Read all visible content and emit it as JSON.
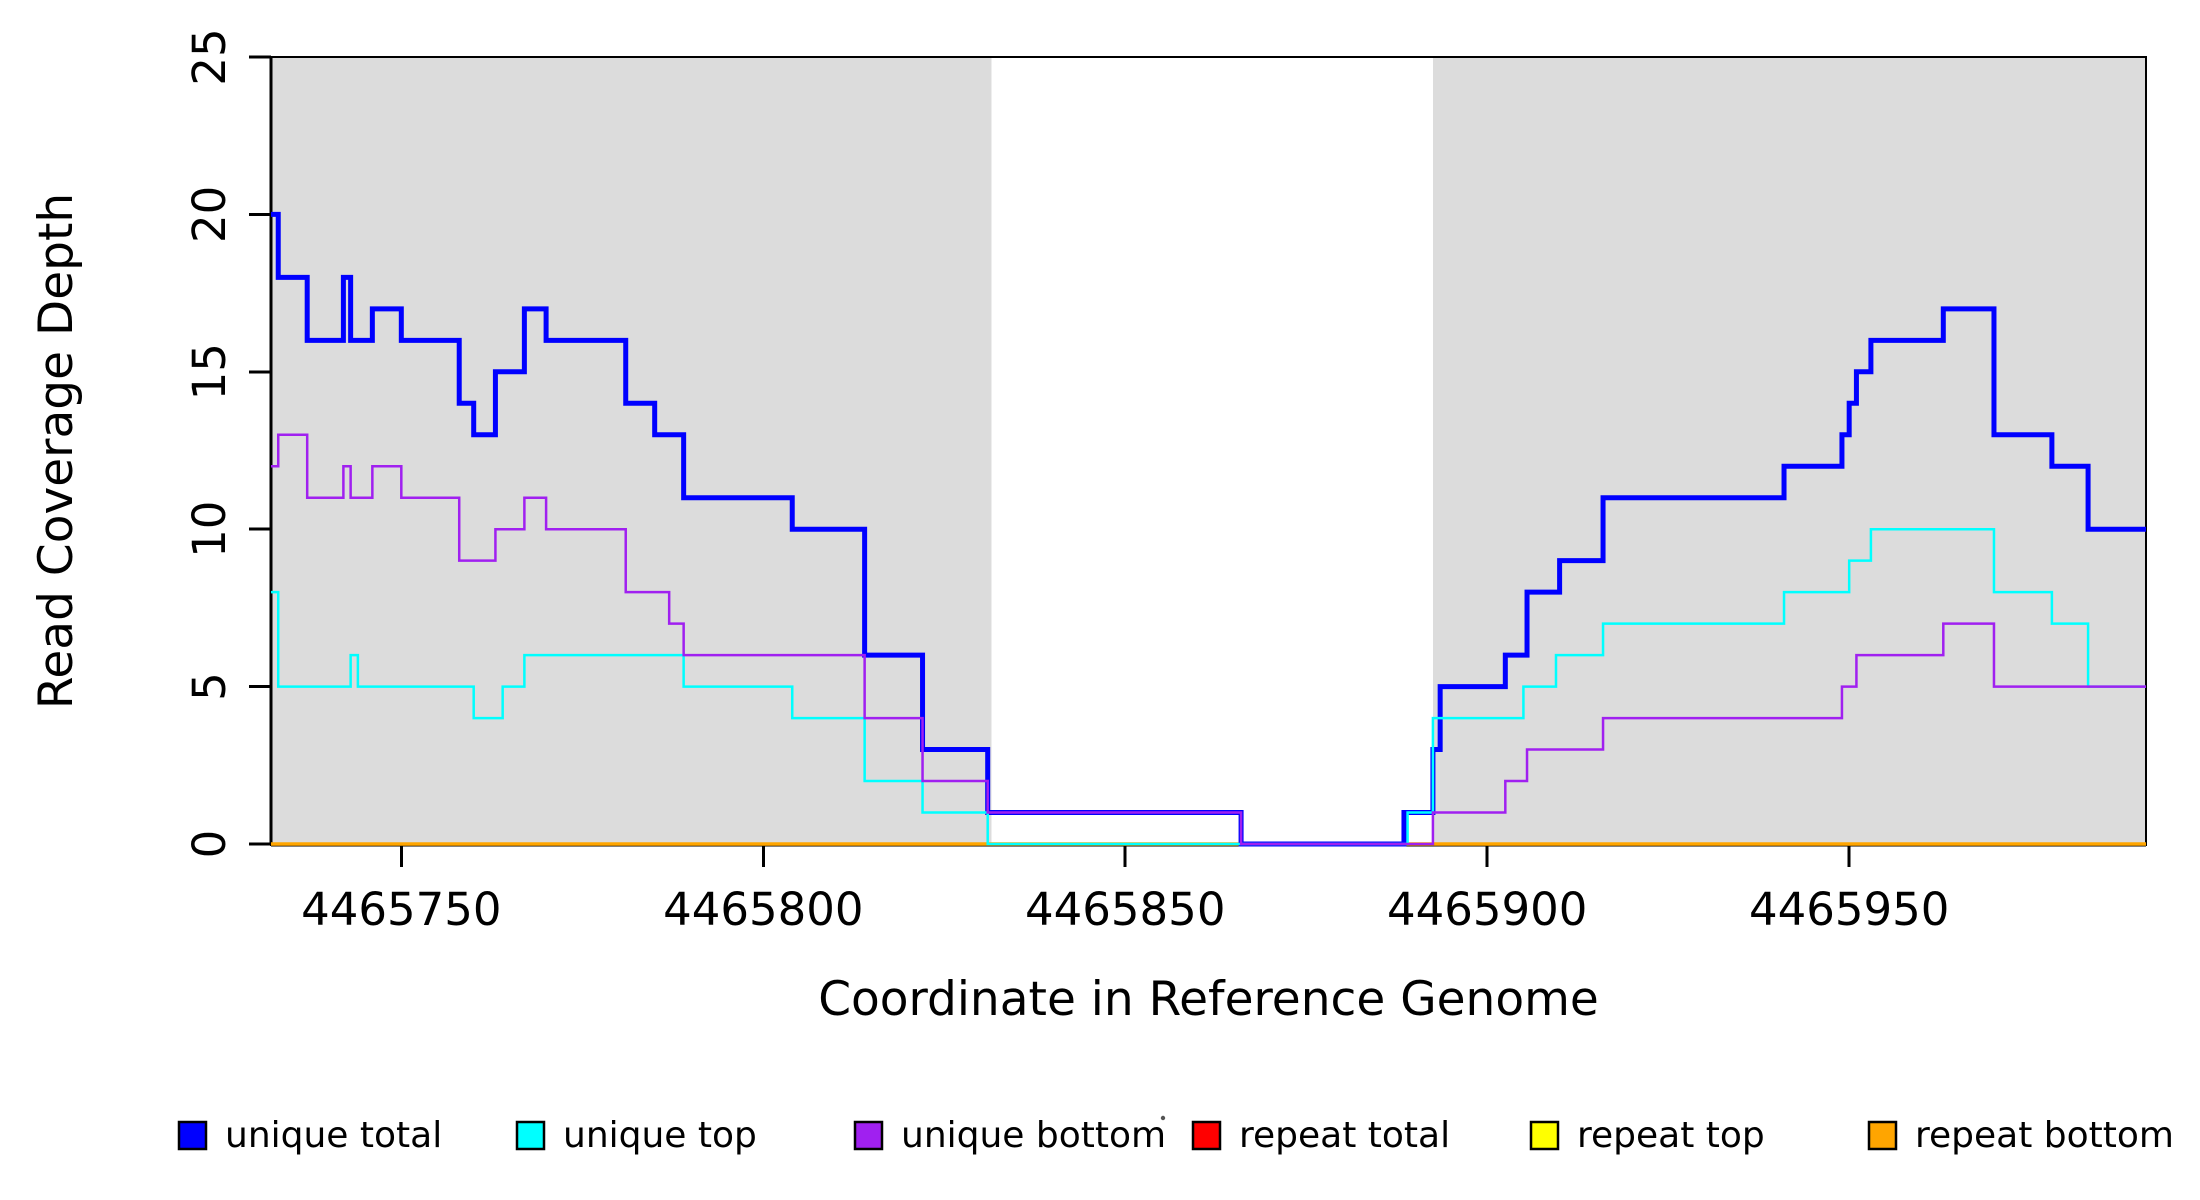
{
  "chart_data": {
    "type": "line",
    "subtype": "step-coverage-plot",
    "title": "",
    "xlabel": "Coordinate in Reference Genome",
    "ylabel": "Read Coverage Depth",
    "xlim": [
      4465732,
      4465991
    ],
    "ylim": [
      0,
      25
    ],
    "x_ticks": [
      4465750,
      4465800,
      4465850,
      4465900,
      4465950
    ],
    "y_ticks": [
      0,
      5,
      10,
      15,
      20,
      25
    ],
    "grid": false,
    "background_color": "#FFFFFF",
    "shaded_region_color": "#DCDCDC",
    "shaded_regions": [
      {
        "start": 4465732,
        "end": 4465831.5
      },
      {
        "start": 4465892.5,
        "end": 4465991
      }
    ],
    "series": [
      {
        "name": "repeat total",
        "color": "#FF0000",
        "width": 3,
        "points": [
          [
            4465732,
            0
          ]
        ]
      },
      {
        "name": "repeat top",
        "color": "#FFFF00",
        "width": 3,
        "points": [
          [
            4465732,
            0
          ]
        ]
      },
      {
        "name": "repeat bottom",
        "color": "#FFA500",
        "width": 3.5,
        "points": [
          [
            4465732,
            0
          ]
        ]
      },
      {
        "name": "unique total",
        "color": "#0000FF",
        "width": 5,
        "points": [
          [
            4465732,
            20
          ],
          [
            4465733,
            18
          ],
          [
            4465737,
            16
          ],
          [
            4465742,
            18
          ],
          [
            4465743,
            16
          ],
          [
            4465746,
            17
          ],
          [
            4465750,
            16
          ],
          [
            4465758,
            14
          ],
          [
            4465760,
            13
          ],
          [
            4465763,
            15
          ],
          [
            4465767,
            17
          ],
          [
            4465770,
            16
          ],
          [
            4465781,
            14
          ],
          [
            4465785,
            13
          ],
          [
            4465789,
            11
          ],
          [
            4465804,
            10
          ],
          [
            4465814,
            6
          ],
          [
            4465822,
            3
          ],
          [
            4465831,
            1
          ],
          [
            4465866,
            0
          ],
          [
            4465888.5,
            1
          ],
          [
            4465892.5,
            3
          ],
          [
            4465893.5,
            5
          ],
          [
            4465902.5,
            6
          ],
          [
            4465905.5,
            8
          ],
          [
            4465910,
            9
          ],
          [
            4465916,
            11
          ],
          [
            4465941,
            12
          ],
          [
            4465949,
            13
          ],
          [
            4465950,
            14
          ],
          [
            4465951,
            15
          ],
          [
            4465953,
            16
          ],
          [
            4465963,
            17
          ],
          [
            4465970,
            13
          ],
          [
            4465978,
            12
          ],
          [
            4465983,
            10
          ]
        ]
      },
      {
        "name": "unique top",
        "color": "#00FFFF",
        "width": 2.5,
        "points": [
          [
            4465732,
            8
          ],
          [
            4465733,
            5
          ],
          [
            4465743,
            6
          ],
          [
            4465744,
            5
          ],
          [
            4465760,
            4
          ],
          [
            4465764,
            5
          ],
          [
            4465767,
            6
          ],
          [
            4465789,
            5
          ],
          [
            4465804,
            4
          ],
          [
            4465814,
            2
          ],
          [
            4465822,
            1
          ],
          [
            4465831,
            0
          ],
          [
            4465889,
            1
          ],
          [
            4465892.5,
            4
          ],
          [
            4465905,
            5
          ],
          [
            4465909.5,
            6
          ],
          [
            4465916,
            7
          ],
          [
            4465941,
            8
          ],
          [
            4465950,
            9
          ],
          [
            4465953,
            10
          ],
          [
            4465970,
            8
          ],
          [
            4465978,
            7
          ],
          [
            4465983,
            5
          ]
        ]
      },
      {
        "name": "unique bottom",
        "color": "#A020F0",
        "width": 2.5,
        "points": [
          [
            4465732,
            12
          ],
          [
            4465733,
            13
          ],
          [
            4465737,
            11
          ],
          [
            4465742,
            12
          ],
          [
            4465743,
            11
          ],
          [
            4465746,
            12
          ],
          [
            4465750,
            11
          ],
          [
            4465758,
            9
          ],
          [
            4465763,
            10
          ],
          [
            4465767,
            11
          ],
          [
            4465770,
            10
          ],
          [
            4465781,
            8
          ],
          [
            4465787,
            7
          ],
          [
            4465789,
            6
          ],
          [
            4465814,
            4
          ],
          [
            4465822,
            2
          ],
          [
            4465831,
            1
          ],
          [
            4465866,
            0
          ],
          [
            4465892.5,
            1
          ],
          [
            4465902.5,
            2
          ],
          [
            4465905.5,
            3
          ],
          [
            4465916,
            4
          ],
          [
            4465949,
            5
          ],
          [
            4465951,
            6
          ],
          [
            4465963,
            7
          ],
          [
            4465970,
            5
          ]
        ]
      }
    ],
    "legend": {
      "position": "bottom",
      "items": [
        {
          "label": "unique total",
          "color": "#0000FF"
        },
        {
          "label": "unique top",
          "color": "#00FFFF"
        },
        {
          "label": "unique bottom",
          "color": "#A020F0"
        },
        {
          "label": "repeat total",
          "color": "#FF0000"
        },
        {
          "label": "repeat top",
          "color": "#FFFF00"
        },
        {
          "label": "repeat bottom",
          "color": "#FFA500"
        }
      ]
    }
  }
}
